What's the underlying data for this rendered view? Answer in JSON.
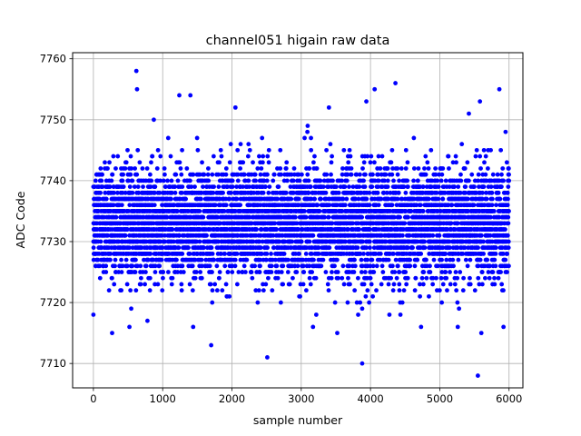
{
  "chart_data": {
    "type": "scatter",
    "title": "channel051 higain raw data",
    "xlabel": "sample number",
    "ylabel": "ADC Code",
    "xlim": [
      -300,
      6200
    ],
    "ylim": [
      7706,
      7761
    ],
    "xticks": [
      0,
      1000,
      2000,
      3000,
      4000,
      5000,
      6000
    ],
    "yticks": [
      7710,
      7720,
      7730,
      7740,
      7750,
      7760
    ],
    "grid": true,
    "marker_color": "#0000ff",
    "series": [
      {
        "n_samples": 6000,
        "typical_center": 7733,
        "typical_spread": 4.5,
        "outliers": [
          {
            "x": 620,
            "y": 7758
          },
          {
            "x": 630,
            "y": 7755
          },
          {
            "x": 1240,
            "y": 7754
          },
          {
            "x": 1400,
            "y": 7754
          },
          {
            "x": 2050,
            "y": 7752
          },
          {
            "x": 3400,
            "y": 7752
          },
          {
            "x": 3940,
            "y": 7753
          },
          {
            "x": 4060,
            "y": 7755
          },
          {
            "x": 4360,
            "y": 7756
          },
          {
            "x": 5420,
            "y": 7751
          },
          {
            "x": 5580,
            "y": 7753
          },
          {
            "x": 5860,
            "y": 7755
          },
          {
            "x": 0,
            "y": 7718
          },
          {
            "x": 270,
            "y": 7715
          },
          {
            "x": 520,
            "y": 7716
          },
          {
            "x": 780,
            "y": 7717
          },
          {
            "x": 1440,
            "y": 7716
          },
          {
            "x": 1700,
            "y": 7713
          },
          {
            "x": 2510,
            "y": 7711
          },
          {
            "x": 3170,
            "y": 7716
          },
          {
            "x": 3520,
            "y": 7715
          },
          {
            "x": 3880,
            "y": 7710
          },
          {
            "x": 4730,
            "y": 7716
          },
          {
            "x": 5260,
            "y": 7716
          },
          {
            "x": 5550,
            "y": 7708
          },
          {
            "x": 5600,
            "y": 7715
          },
          {
            "x": 5920,
            "y": 7716
          }
        ]
      }
    ]
  }
}
